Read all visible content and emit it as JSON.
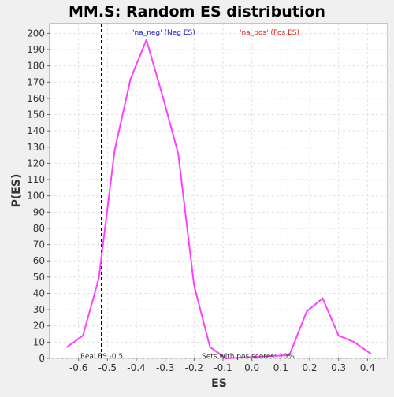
{
  "chart_data": {
    "type": "line",
    "title": "MM.S: Random ES distribution",
    "xlabel": "ES",
    "ylabel": "P(ES)",
    "xlim": [
      -0.7,
      0.47
    ],
    "ylim": [
      0,
      206
    ],
    "x_ticks": [
      "-0.6",
      "-0.5",
      "-0.4",
      "-0.3",
      "-0.2",
      "-0.1",
      "0.0",
      "0.1",
      "0.2",
      "0.3",
      "0.4"
    ],
    "y_ticks": [
      "0",
      "10",
      "20",
      "30",
      "40",
      "50",
      "60",
      "70",
      "80",
      "90",
      "100",
      "110",
      "120",
      "130",
      "140",
      "150",
      "160",
      "170",
      "180",
      "190",
      "200"
    ],
    "grid": true,
    "series": [
      {
        "color": "#ff40ff",
        "x": [
          -0.64,
          -0.585,
          -0.53,
          -0.475,
          -0.42,
          -0.365,
          -0.31,
          -0.255,
          -0.2,
          -0.145,
          -0.09,
          0.13,
          0.19,
          0.245,
          0.3,
          0.355,
          0.41
        ],
        "y": [
          7,
          14,
          49,
          128,
          172,
          196,
          162,
          126,
          45,
          7,
          0,
          2,
          29,
          37,
          14,
          10,
          3
        ]
      }
    ],
    "reference_line": {
      "x": -0.52,
      "label": "Real ES -0.5"
    },
    "annotations": {
      "neg_label": "'na_neg' (Neg ES)",
      "pos_label": "'na_pos' (Pos ES)",
      "sets_label": "Sets with pos scores: 10%",
      "neg_color": "#2020c0",
      "pos_color": "#e02020"
    }
  }
}
